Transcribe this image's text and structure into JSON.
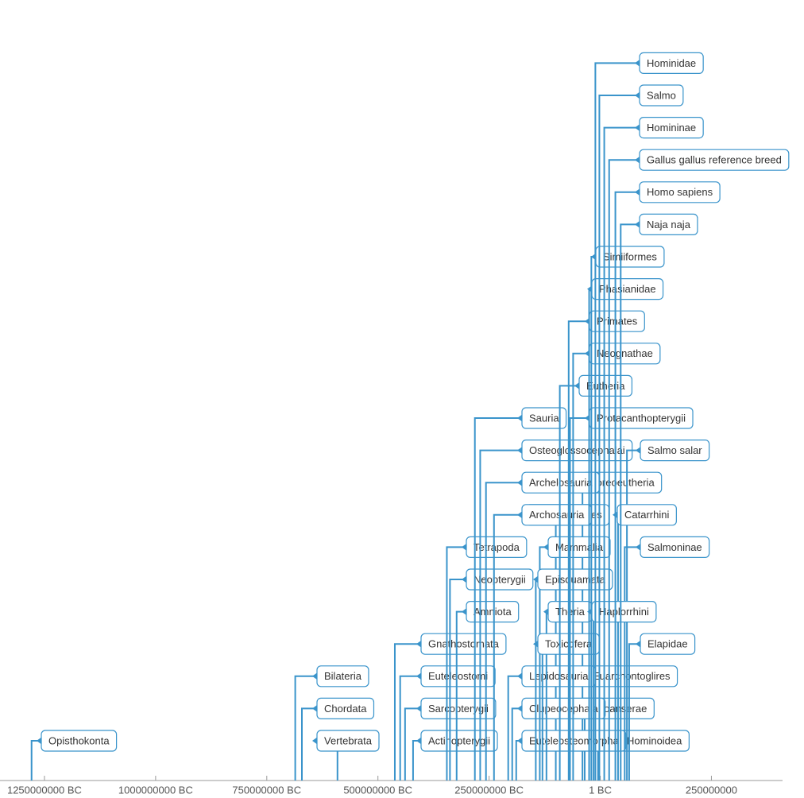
{
  "chart_data": {
    "type": "timeline",
    "color": "#3a94cb",
    "xlim": [
      -1350000000,
      410000000
    ],
    "xticks": [
      {
        "value": -1250000000,
        "label": "1250000000 BC"
      },
      {
        "value": -1000000000,
        "label": "1000000000 BC"
      },
      {
        "value": -750000000,
        "label": "750000000 BC"
      },
      {
        "value": -500000000,
        "label": "500000000 BC"
      },
      {
        "value": -250000000,
        "label": "250000000 BC"
      },
      {
        "value": 0,
        "label": "1 BC"
      },
      250000000
    ],
    "events": [
      {
        "label": "Boreoeutheria",
        "date": -40000000
      },
      {
        "label": "Salmoniformes",
        "date": -100000000
      },
      {
        "label": "Euarchontoglires",
        "date": -25000000
      },
      {
        "label": "Galloanserae",
        "date": -35000000
      },
      {
        "label": "Hominoidea",
        "date": -5000000
      },
      {
        "label": "Opisthokonta",
        "date": -1279000000
      },
      {
        "label": "Bilateria",
        "date": -686000000
      },
      {
        "label": "Chordata",
        "date": -671000000
      },
      {
        "label": "Vertebrata",
        "date": -591000000
      },
      {
        "label": "Gnathostomata",
        "date": -462000000
      },
      {
        "label": "Euteleostomi",
        "date": -450000000
      },
      {
        "label": "Sarcopterygii",
        "date": -439000000
      },
      {
        "label": "Actinopterygii",
        "date": -421000000
      },
      {
        "label": "Tetrapoda",
        "date": -345000000
      },
      {
        "label": "Neopterygii",
        "date": -338000000
      },
      {
        "label": "Amniota",
        "date": -323000000
      },
      {
        "label": "Sauria",
        "date": -282000000
      },
      {
        "label": "Osteoglossocephalai",
        "date": -270000000
      },
      {
        "label": "Archelosauria",
        "date": -257000000
      },
      {
        "label": "Archosauria",
        "date": -239000000
      },
      {
        "label": "Lepidosauria",
        "date": -207000000
      },
      {
        "label": "Clupeocephala",
        "date": -198000000
      },
      {
        "label": "Euteleosteomorpha",
        "date": -189000000
      },
      {
        "label": "Mammalia",
        "date": -136000000
      },
      {
        "label": "Episquamata",
        "date": -145000000
      },
      {
        "label": "Theria",
        "date": -121000000
      },
      {
        "label": "Toxicofera",
        "date": -130000000
      },
      {
        "label": "Eutheria",
        "date": -91000000
      },
      {
        "label": "Protacanthopterygii",
        "date": -68000000
      },
      {
        "label": "Primates",
        "date": -71000000
      },
      {
        "label": "Neognathae",
        "date": -61000000
      },
      {
        "label": "Simiiformes",
        "date": -20000000
      },
      {
        "label": "Phasianidae",
        "date": -25000000
      },
      {
        "label": "Salmo salar",
        "date": 60000000
      },
      {
        "label": "Catarrhini",
        "date": 40000000
      },
      {
        "label": "Salmoninae",
        "date": 55000000
      },
      {
        "label": "Haplorrhini",
        "date": -15000000
      },
      {
        "label": "Elapidae",
        "date": 65000000
      },
      {
        "label": "Hominidae",
        "date": -11000000
      },
      {
        "label": "Salmo",
        "date": -2000000
      },
      {
        "label": "Homininae",
        "date": 9000000
      },
      {
        "label": "Gallus gallus reference breed",
        "date": 20000000
      },
      {
        "label": "Homo sapiens",
        "date": 34000000
      },
      {
        "label": "Naja naja",
        "date": 46000000
      }
    ]
  }
}
